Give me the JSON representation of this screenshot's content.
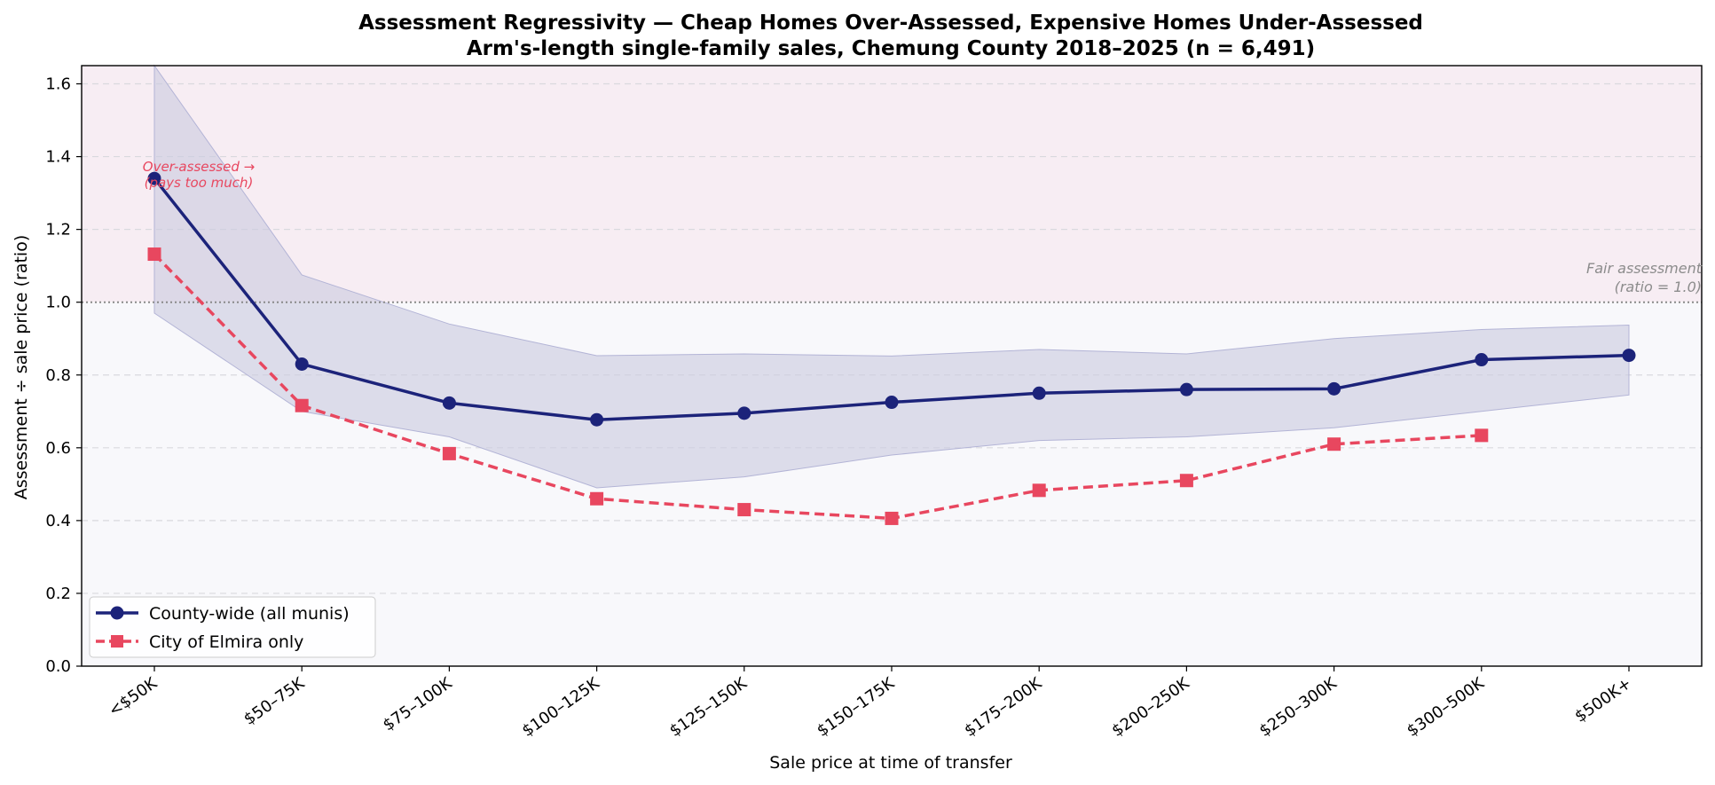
{
  "chart_data": {
    "type": "line",
    "title": "Assessment Regressivity — Cheap Homes Over-Assessed, Expensive Homes Under-Assessed",
    "subtitle": "Arm's-length single-family sales, Chemung County 2018–2025  (n = 6,491)",
    "xlabel": "Sale price at time of transfer",
    "ylabel": "Assessment ÷ sale price (ratio)",
    "categories": [
      "<$50K",
      "$50–75K",
      "$75–100K",
      "$100–125K",
      "$125–150K",
      "$150–175K",
      "$175–200K",
      "$200–250K",
      "$250–300K",
      "$300–500K",
      "$500K+"
    ],
    "ylim": [
      0,
      1.65
    ],
    "yticks": [
      "0.0",
      "0.2",
      "0.4",
      "0.6",
      "0.8",
      "1.0",
      "1.2",
      "1.4",
      "1.6"
    ],
    "grid": "horizontal dashed",
    "series": [
      {
        "name": "County-wide (all munis)",
        "color": "#1c237a",
        "marker": "circle",
        "line": "solid",
        "values": [
          1.34,
          0.83,
          0.723,
          0.677,
          0.695,
          0.725,
          0.75,
          0.76,
          0.762,
          0.842,
          0.854
        ],
        "band_low": [
          0.97,
          0.7,
          0.63,
          0.49,
          0.52,
          0.58,
          0.62,
          0.63,
          0.655,
          0.7,
          0.745
        ],
        "band_high": [
          1.65,
          1.075,
          0.94,
          0.853,
          0.858,
          0.852,
          0.87,
          0.858,
          0.9,
          0.925,
          0.937
        ]
      },
      {
        "name": "City of Elmira only",
        "color": "#e8475f",
        "marker": "square",
        "line": "dashed",
        "values": [
          1.132,
          0.716,
          0.584,
          0.46,
          0.43,
          0.406,
          0.483,
          0.51,
          0.61,
          0.634,
          null
        ]
      }
    ],
    "reference_line": {
      "y": 1.0,
      "label_line1": "Fair assessment",
      "label_line2": "(ratio = 1.0)"
    },
    "annotation": {
      "line1": "Over-assessed →",
      "line2": "(pays too much)"
    },
    "colors": {
      "over_region": "#f7edf3",
      "under_region": "#f8f8fb",
      "band": "#c9cadf"
    },
    "legend_position": "lower-left"
  }
}
